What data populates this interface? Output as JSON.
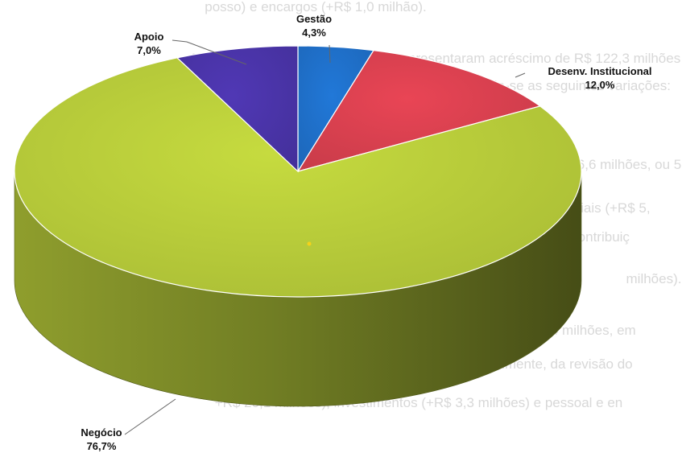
{
  "background_text": [
    "posso) e encargos (+R$ 1,0 milhão).",
    "As demais despesas operacionais apresentaram acréscimo de R$ 122,3 milhões",
    "em relação ao orçamento inicial 2023, destacando-se as seguintes variações:",
    "SESIGN: houve incremento de R$ 106,6 milhões, ou 55,2%,",
    "ento, de despesas diversas (+R$ 54,9 milhões), materiais (+R$ 5,",
    "cias regulamentares (+R$ 12,3 milhões) e gratificações e contribuiç",
    "milhões).",
    "onselho Nacional aumentou R$ 44,5 milhões, ou 4,4 milhões, em",
    "o inicial 2023. Esse aumento decorre, principalmente, da revisão do",
    "+R$ 20,1 milhões), investimentos (+R$ 3,3 milhões) e pessoal e en"
  ],
  "chart_data": {
    "type": "pie",
    "title": "",
    "style": "3d",
    "slices": [
      {
        "label": "Gestão",
        "value_label": "4,3%",
        "value": 4.3,
        "color": "#1f6fc8"
      },
      {
        "label": "Desenv. Institucional",
        "value_label": "12,0%",
        "value": 12.0,
        "color": "#d8404f"
      },
      {
        "label": "Negócio",
        "value_label": "76,7%",
        "value": 76.7,
        "color": "#b7cb3a"
      },
      {
        "label": "Apoio",
        "value_label": "7,0%",
        "value": 7.0,
        "color": "#4a34a8"
      }
    ]
  }
}
